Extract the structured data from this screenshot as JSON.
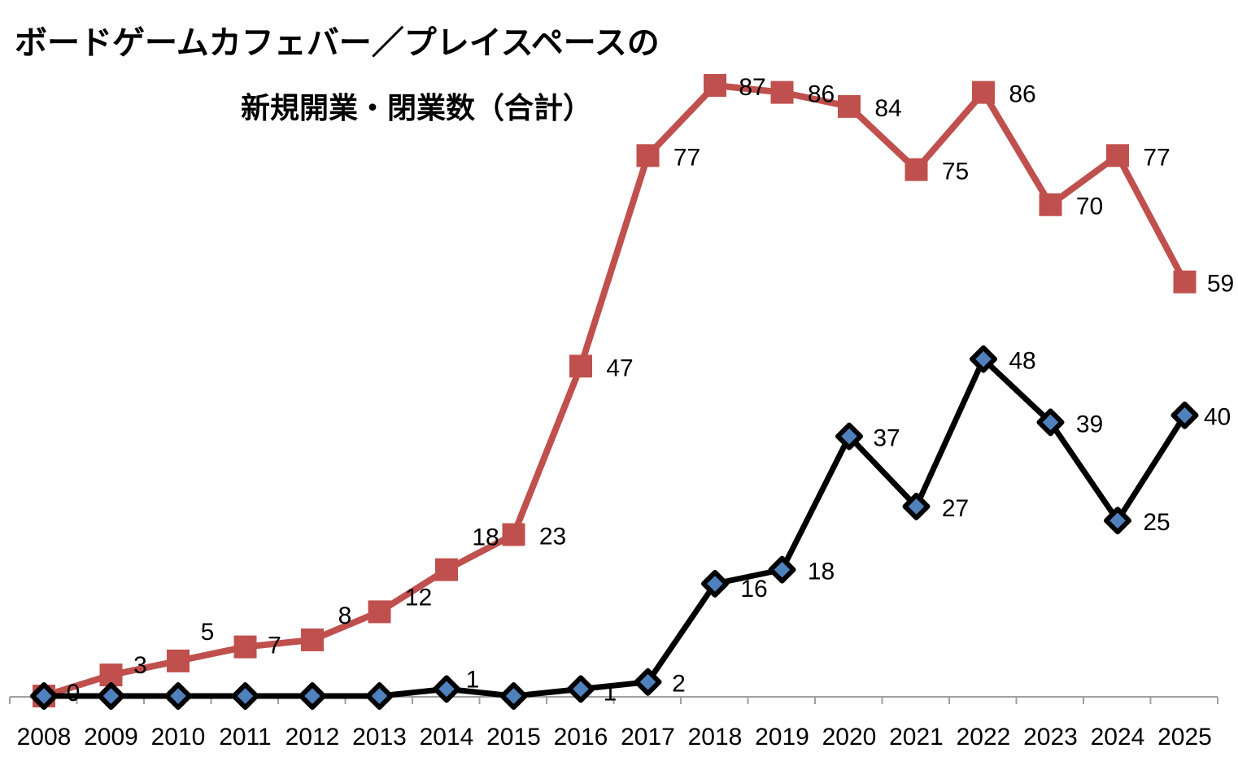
{
  "chart_data": {
    "type": "line",
    "title": [
      "ボードゲームカフェバー／プレイスペースの",
      "新規開業・閉業数（合計）"
    ],
    "xlabel": "",
    "ylabel": "",
    "x": [
      "2008",
      "2009",
      "2010",
      "2011",
      "2012",
      "2013",
      "2014",
      "2015",
      "2016",
      "2017",
      "2018",
      "2019",
      "2020",
      "2021",
      "2022",
      "2023",
      "2024",
      "2025"
    ],
    "ylim": [
      0,
      87
    ],
    "grid": false,
    "legend": "none",
    "series": [
      {
        "name": "red-series",
        "color": "#C0504D",
        "marker": "square",
        "values": [
          0,
          3,
          5,
          7,
          8,
          12,
          18,
          23,
          47,
          77,
          87,
          86,
          84,
          75,
          86,
          70,
          77,
          59
        ],
        "labels": [
          "0",
          "3",
          "5",
          "7",
          "8",
          "12",
          "18",
          "23",
          "47",
          "77",
          "87",
          "86",
          "84",
          "75",
          "86",
          "70",
          "77",
          "59"
        ]
      },
      {
        "name": "black-series",
        "color": "#000000",
        "marker": "diamond",
        "marker_fill": "#4F81BD",
        "values": [
          0,
          0,
          0,
          0,
          0,
          0,
          1,
          0,
          1,
          2,
          16,
          18,
          37,
          27,
          48,
          39,
          25,
          40
        ],
        "labels": [
          null,
          null,
          null,
          null,
          null,
          null,
          "1",
          null,
          "1",
          "2",
          "16",
          "18",
          "37",
          "27",
          "48",
          "39",
          "25",
          "40"
        ]
      }
    ]
  }
}
